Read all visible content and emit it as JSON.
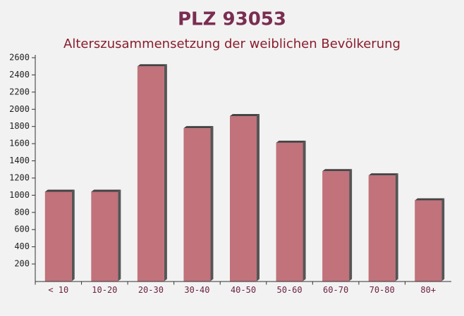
{
  "chart_data": {
    "type": "bar",
    "title": "PLZ 93053",
    "subtitle": "Alterszusammensetzung der weiblichen Bevölkerung",
    "categories": [
      "< 10",
      "10-20",
      "20-30",
      "30-40",
      "40-50",
      "50-60",
      "60-70",
      "70-80",
      "80+"
    ],
    "values": [
      1040,
      1040,
      2500,
      1780,
      1920,
      1610,
      1280,
      1230,
      940
    ],
    "color": "#b85c66",
    "ylim": [
      0,
      2600
    ],
    "yticks": [
      200,
      400,
      600,
      800,
      1000,
      1200,
      1400,
      1600,
      1800,
      2000,
      2200,
      2400,
      2600
    ]
  }
}
